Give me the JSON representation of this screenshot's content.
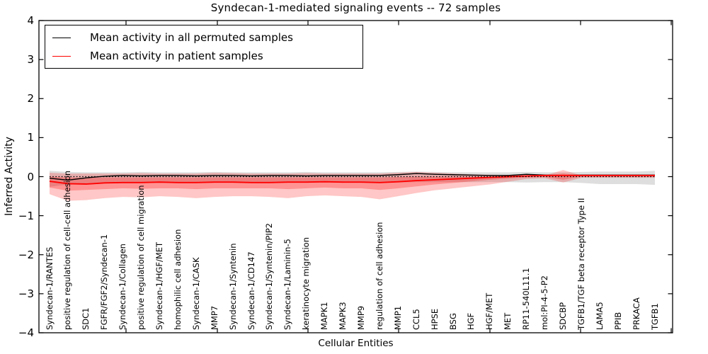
{
  "chart_data": {
    "type": "line",
    "title": "Syndecan-1-mediated signaling events -- 72 samples",
    "xlabel": "Cellular Entities",
    "ylabel": "Inferred Activity",
    "ylim": [
      -4,
      4
    ],
    "yticks": [
      4,
      3,
      2,
      1,
      0,
      -1,
      -2,
      -3,
      -4
    ],
    "grid": false,
    "legend_position": "upper left",
    "baseline": {
      "value": 0,
      "color": "#000000",
      "style": "dotted"
    },
    "categories": [
      "Syndecan-1/RANTES",
      "positive regulation of cell-cell adhesion",
      "SDC1",
      "FGFR/FGF2/Syndecan-1",
      "Syndecan-1/Collagen",
      "positive regulation of cell migration",
      "Syndecan-1/HGF/MET",
      "homophilic cell adhesion",
      "Syndecan-1/CASK",
      "MMP7",
      "Syndecan-1/Syntenin",
      "Syndecan-1/CD147",
      "Syndecan-1/Syntenin/PIP2",
      "Syndecan-1/Laminin-5",
      "keratinocyte migration",
      "MAPK1",
      "MAPK3",
      "MMP9",
      "regulation of cell adhesion",
      "MMP1",
      "CCL5",
      "HPSE",
      "BSG",
      "HGF",
      "HGF/MET",
      "MET",
      "RP11-540L11.1",
      "mol:PI-4-5-P2",
      "SDCBP",
      "TGFB1/TGF beta receptor Type II",
      "LAMA5",
      "PPIB",
      "PRKACA",
      "TGFB1"
    ],
    "series": [
      {
        "name": "Mean activity in all permuted samples",
        "color": "#000000",
        "style": "solid",
        "values": [
          -0.04,
          -0.09,
          -0.03,
          0.01,
          0.03,
          0.02,
          0.03,
          0.03,
          0.02,
          0.03,
          0.03,
          0.02,
          0.03,
          0.03,
          0.02,
          0.03,
          0.03,
          0.03,
          0.03,
          0.05,
          0.08,
          0.06,
          0.05,
          0.04,
          0.03,
          0.03,
          0.06,
          0.04,
          0.03,
          0.04,
          0.04,
          0.04,
          0.04,
          0.04
        ]
      },
      {
        "name": "Mean activity in patient samples",
        "color": "#ff0000",
        "style": "solid",
        "values": [
          -0.12,
          -0.18,
          -0.19,
          -0.16,
          -0.15,
          -0.15,
          -0.14,
          -0.15,
          -0.15,
          -0.14,
          -0.14,
          -0.15,
          -0.15,
          -0.14,
          -0.14,
          -0.13,
          -0.14,
          -0.14,
          -0.15,
          -0.13,
          -0.1,
          -0.08,
          -0.06,
          -0.04,
          -0.02,
          0.0,
          0.02,
          0.03,
          0.03,
          0.03,
          0.03,
          0.03,
          0.03,
          0.03
        ]
      }
    ],
    "bands": [
      {
        "name": "permuted-samples-range",
        "color": "#000000",
        "opacity": 0.13,
        "upper": [
          0.15,
          0.12,
          0.11,
          0.11,
          0.11,
          0.12,
          0.11,
          0.11,
          0.11,
          0.12,
          0.11,
          0.11,
          0.11,
          0.11,
          0.12,
          0.11,
          0.11,
          0.11,
          0.11,
          0.12,
          0.13,
          0.12,
          0.11,
          0.11,
          0.11,
          0.11,
          0.12,
          0.11,
          0.11,
          0.12,
          0.13,
          0.13,
          0.13,
          0.15
        ],
        "lower": [
          -0.26,
          -0.2,
          -0.17,
          -0.16,
          -0.15,
          -0.15,
          -0.15,
          -0.15,
          -0.15,
          -0.15,
          -0.15,
          -0.15,
          -0.15,
          -0.15,
          -0.15,
          -0.15,
          -0.15,
          -0.15,
          -0.15,
          -0.15,
          -0.14,
          -0.14,
          -0.14,
          -0.14,
          -0.14,
          -0.14,
          -0.15,
          -0.14,
          -0.14,
          -0.16,
          -0.19,
          -0.19,
          -0.19,
          -0.21
        ]
      },
      {
        "name": "patient-samples-range-outer",
        "color": "#ff0000",
        "opacity": 0.22,
        "upper": [
          0.1,
          0.08,
          0.08,
          0.08,
          0.08,
          0.09,
          0.08,
          0.08,
          0.08,
          0.1,
          0.09,
          0.08,
          0.08,
          0.08,
          0.09,
          0.08,
          0.08,
          0.08,
          0.08,
          0.1,
          0.12,
          0.1,
          0.08,
          0.06,
          0.05,
          0.04,
          0.03,
          0.03,
          0.17,
          0.03,
          0.03,
          0.03,
          0.03,
          0.03
        ],
        "lower": [
          -0.45,
          -0.62,
          -0.6,
          -0.55,
          -0.52,
          -0.53,
          -0.5,
          -0.52,
          -0.55,
          -0.52,
          -0.5,
          -0.5,
          -0.52,
          -0.55,
          -0.5,
          -0.48,
          -0.5,
          -0.52,
          -0.58,
          -0.5,
          -0.42,
          -0.35,
          -0.3,
          -0.25,
          -0.2,
          -0.13,
          -0.06,
          -0.04,
          -0.15,
          -0.03,
          -0.03,
          -0.03,
          -0.03,
          -0.03
        ]
      },
      {
        "name": "patient-samples-range-inner",
        "color": "#ff0000",
        "opacity": 0.26,
        "upper": [
          0.0,
          -0.02,
          -0.03,
          -0.02,
          -0.02,
          -0.02,
          -0.02,
          -0.02,
          -0.02,
          -0.02,
          -0.02,
          -0.02,
          -0.02,
          -0.02,
          -0.02,
          -0.02,
          -0.02,
          -0.02,
          -0.02,
          -0.01,
          0.0,
          0.0,
          0.0,
          0.0,
          0.0,
          0.01,
          0.02,
          0.03,
          0.08,
          0.03,
          0.03,
          0.03,
          0.03,
          0.03
        ],
        "lower": [
          -0.28,
          -0.36,
          -0.34,
          -0.32,
          -0.3,
          -0.31,
          -0.3,
          -0.3,
          -0.32,
          -0.3,
          -0.3,
          -0.3,
          -0.3,
          -0.32,
          -0.3,
          -0.28,
          -0.3,
          -0.3,
          -0.34,
          -0.3,
          -0.25,
          -0.2,
          -0.16,
          -0.12,
          -0.08,
          -0.05,
          -0.02,
          -0.01,
          -0.08,
          0.0,
          0.0,
          0.0,
          0.0,
          0.0
        ]
      }
    ]
  }
}
